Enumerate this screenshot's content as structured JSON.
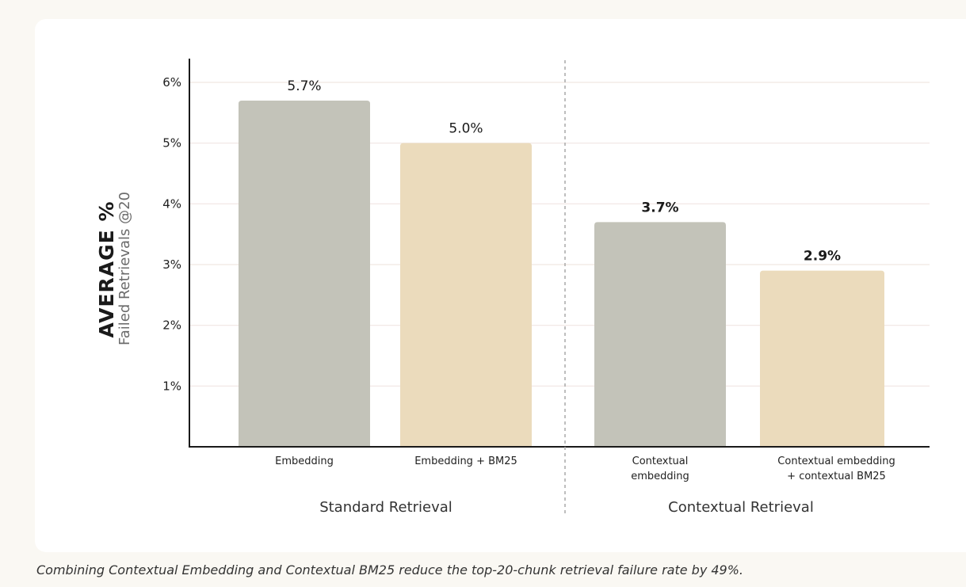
{
  "chart_data": {
    "type": "bar",
    "ylabel": "AVERAGE %",
    "ysublabel": "Failed Retrievals @20",
    "ylim": [
      0,
      6.4
    ],
    "yticks": [
      1,
      2,
      3,
      4,
      5,
      6
    ],
    "ytick_labels": [
      "1%",
      "2%",
      "3%",
      "4%",
      "5%",
      "6%"
    ],
    "grid": true,
    "categories": [
      "Embedding",
      "Embedding + BM25",
      "Contextual embedding",
      "Contextual embedding + contextual BM25"
    ],
    "category_lines": [
      [
        "Embedding"
      ],
      [
        "Embedding + BM25"
      ],
      [
        "Contextual",
        "embedding"
      ],
      [
        "Contextual embedding",
        "+ contextual BM25"
      ]
    ],
    "values": [
      5.7,
      5.0,
      3.7,
      2.9
    ],
    "value_labels": [
      "5.7%",
      "5.0%",
      "3.7%",
      "2.9%"
    ],
    "bold_labels": [
      false,
      false,
      true,
      true
    ],
    "groups": [
      {
        "name": "Standard Retrieval",
        "members": [
          0,
          1
        ]
      },
      {
        "name": "Contextual Retrieval",
        "members": [
          2,
          3
        ]
      }
    ],
    "colors": {
      "embedding": "#C3C3B9",
      "bm25": "#EBDBBC",
      "axis": "#1A1A1A",
      "grid": "#F1E6E2",
      "divider": "#A8A8A8"
    }
  },
  "caption": "Combining Contextual Embedding and Contextual BM25 reduce the top-20-chunk retrieval failure rate by 49%."
}
